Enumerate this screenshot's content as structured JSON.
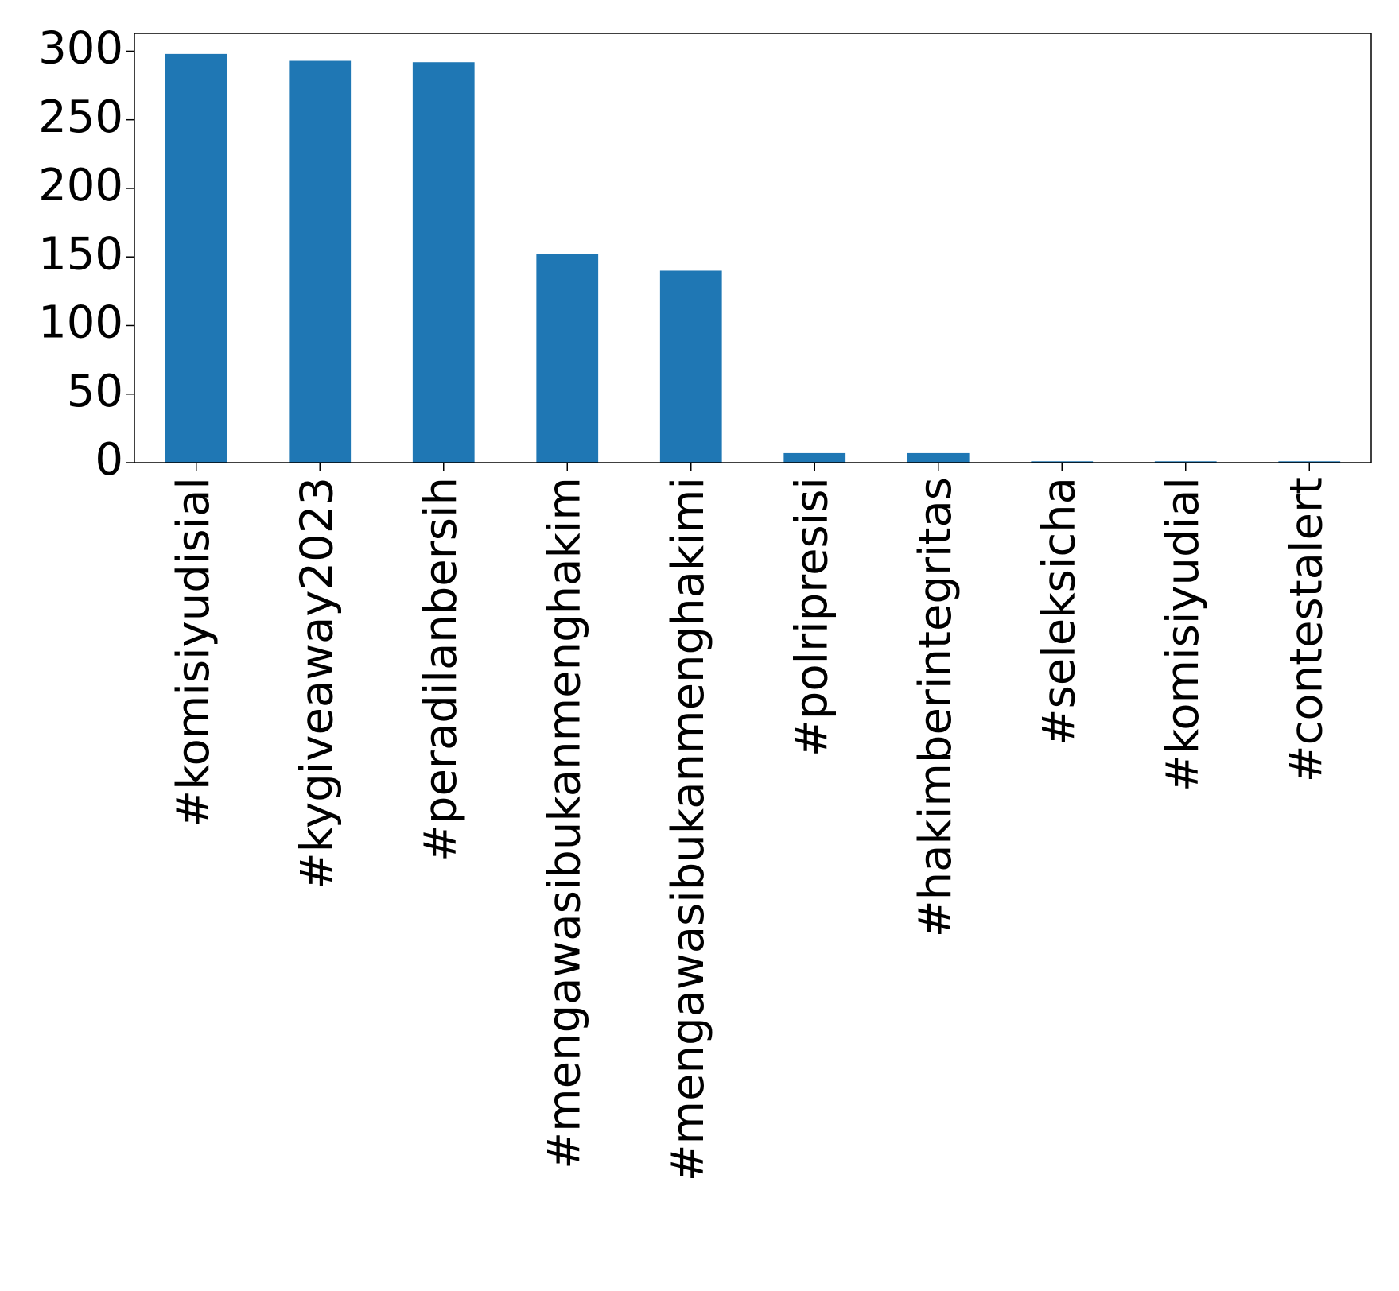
{
  "chart_data": {
    "type": "bar",
    "title": "",
    "xlabel": "",
    "ylabel": "",
    "categories": [
      "#komisiyudisial",
      "#kygiveaway2023",
      "#peradilanbersih",
      "#mengawasibukanmenghakim",
      "#mengawasibukanmenghakimi",
      "#polripresisi",
      "#hakimberintegritas",
      "#seleksicha",
      "#komisiyudial",
      "#contestalert"
    ],
    "values": [
      298,
      293,
      292,
      152,
      140,
      7,
      7,
      1,
      1,
      1
    ],
    "ylim": [
      0,
      313
    ],
    "yticks": [
      0,
      50,
      100,
      150,
      200,
      250,
      300
    ],
    "grid": false,
    "legend": "none",
    "bar_color": "#1f77b4"
  }
}
